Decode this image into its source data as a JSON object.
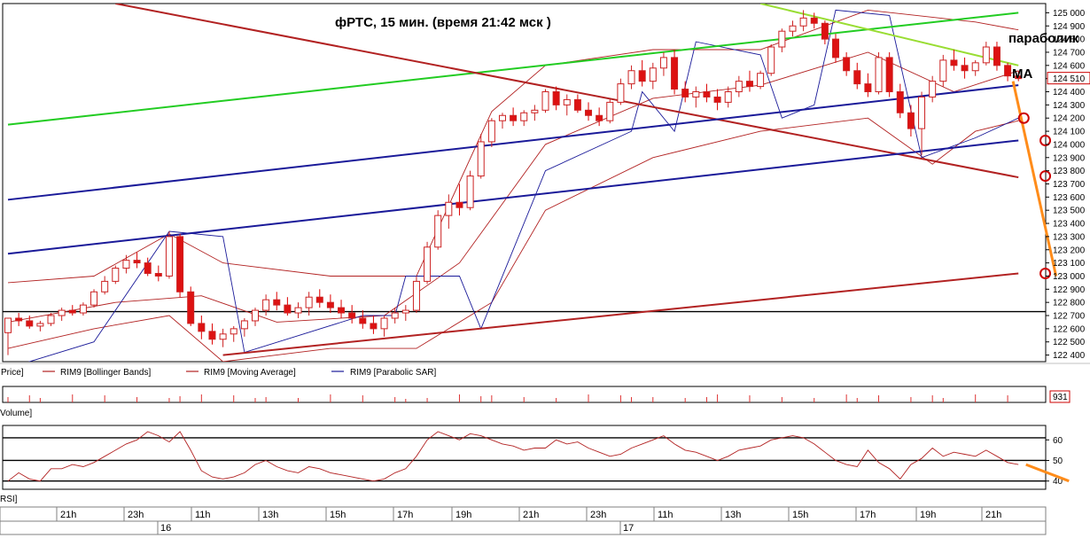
{
  "chart_data": {
    "type": "candlestick",
    "title": "фРТС,  15 мин.  (время 21:42 мск )",
    "price_axis": {
      "ticks": [
        122400,
        122500,
        122600,
        122700,
        122800,
        122900,
        123000,
        123100,
        123200,
        123300,
        123400,
        123500,
        123600,
        123700,
        123800,
        123900,
        124000,
        124100,
        124200,
        124300,
        124400,
        124500,
        124600,
        124700,
        124800,
        124900,
        125000
      ],
      "labels": [
        "122 400",
        "122 500",
        "122 600",
        "122 700",
        "122 800",
        "122 900",
        "123 000",
        "123 100",
        "123 200",
        "123 300",
        "123 400",
        "123 500",
        "123 600",
        "123 700",
        "123 800",
        "123 900",
        "124 000",
        "124 100",
        "124 200",
        "124 300",
        "124 400",
        "124 500",
        "124 600",
        "124 700",
        "124 800",
        "124 900",
        "125 000"
      ],
      "ylim": [
        122350,
        125070
      ],
      "last_price_label": "124 510",
      "horizontal_line": 122730
    },
    "time_axis": {
      "labels": [
        "21h",
        "23h",
        "11h",
        "13h",
        "15h",
        "17h",
        "19h",
        "21h",
        "23h",
        "11h",
        "13h",
        "15h",
        "17h",
        "19h",
        "21h"
      ],
      "day_labels": [
        "16",
        "17"
      ]
    },
    "legend": [
      "Price]",
      "RIM9 [Bollinger Bands]",
      "RIM9 [Moving Average]",
      "RIM9 [Parabolic SAR]"
    ],
    "annotations": {
      "parabolic": "параболик",
      "ma": "MA"
    },
    "candles": [
      [
        122570,
        122680,
        122400,
        122680
      ],
      [
        122680,
        122720,
        122620,
        122660
      ],
      [
        122660,
        122700,
        122600,
        122620
      ],
      [
        122620,
        122660,
        122580,
        122640
      ],
      [
        122640,
        122720,
        122620,
        122700
      ],
      [
        122700,
        122760,
        122660,
        122740
      ],
      [
        122740,
        122780,
        122700,
        122720
      ],
      [
        122720,
        122800,
        122700,
        122780
      ],
      [
        122780,
        122900,
        122760,
        122880
      ],
      [
        122880,
        123000,
        122860,
        122960
      ],
      [
        122960,
        123080,
        122940,
        123060
      ],
      [
        123060,
        123160,
        123020,
        123120
      ],
      [
        123120,
        123180,
        123060,
        123100
      ],
      [
        123100,
        123140,
        123000,
        123020
      ],
      [
        123020,
        123080,
        122960,
        123000
      ],
      [
        123000,
        123340,
        122980,
        123300
      ],
      [
        123300,
        123320,
        122840,
        122880
      ],
      [
        122880,
        122920,
        122620,
        122640
      ],
      [
        122640,
        122700,
        122520,
        122580
      ],
      [
        122580,
        122640,
        122480,
        122520
      ],
      [
        122520,
        122600,
        122460,
        122560
      ],
      [
        122560,
        122620,
        122500,
        122600
      ],
      [
        122600,
        122680,
        122540,
        122660
      ],
      [
        122660,
        122760,
        122620,
        122740
      ],
      [
        122740,
        122860,
        122700,
        122820
      ],
      [
        122820,
        122880,
        122740,
        122780
      ],
      [
        122780,
        122840,
        122700,
        122720
      ],
      [
        122720,
        122800,
        122680,
        122760
      ],
      [
        122760,
        122880,
        122700,
        122840
      ],
      [
        122840,
        122900,
        122760,
        122800
      ],
      [
        122800,
        122860,
        122720,
        122760
      ],
      [
        122760,
        122820,
        122680,
        122720
      ],
      [
        122720,
        122780,
        122640,
        122680
      ],
      [
        122680,
        122740,
        122600,
        122640
      ],
      [
        122640,
        122700,
        122560,
        122600
      ],
      [
        122600,
        122700,
        122540,
        122680
      ],
      [
        122680,
        122760,
        122640,
        122720
      ],
      [
        122720,
        122780,
        122660,
        122740
      ],
      [
        122740,
        123000,
        122720,
        122960
      ],
      [
        122960,
        123260,
        122940,
        123220
      ],
      [
        123220,
        123500,
        123200,
        123460
      ],
      [
        123460,
        123620,
        123360,
        123560
      ],
      [
        123560,
        123700,
        123460,
        123520
      ],
      [
        123520,
        123800,
        123500,
        123760
      ],
      [
        123760,
        124080,
        123740,
        124020
      ],
      [
        124020,
        124200,
        123980,
        124180
      ],
      [
        124180,
        124240,
        124120,
        124220
      ],
      [
        124220,
        124280,
        124140,
        124180
      ],
      [
        124180,
        124260,
        124140,
        124240
      ],
      [
        124240,
        124300,
        124180,
        124260
      ],
      [
        124260,
        124420,
        124240,
        124400
      ],
      [
        124400,
        124440,
        124260,
        124300
      ],
      [
        124300,
        124380,
        124220,
        124340
      ],
      [
        124340,
        124380,
        124240,
        124260
      ],
      [
        124260,
        124320,
        124180,
        124220
      ],
      [
        124220,
        124280,
        124140,
        124180
      ],
      [
        124180,
        124340,
        124160,
        124320
      ],
      [
        124320,
        124500,
        124300,
        124460
      ],
      [
        124460,
        124600,
        124420,
        124560
      ],
      [
        124560,
        124640,
        124440,
        124480
      ],
      [
        124480,
        124620,
        124420,
        124580
      ],
      [
        124580,
        124700,
        124520,
        124660
      ],
      [
        124660,
        124720,
        124380,
        124420
      ],
      [
        124420,
        124480,
        124320,
        124360
      ],
      [
        124360,
        124440,
        124280,
        124400
      ],
      [
        124400,
        124460,
        124320,
        124360
      ],
      [
        124360,
        124420,
        124260,
        124320
      ],
      [
        124320,
        124440,
        124280,
        124400
      ],
      [
        124400,
        124520,
        124360,
        124480
      ],
      [
        124480,
        124560,
        124400,
        124440
      ],
      [
        124440,
        124560,
        124420,
        124540
      ],
      [
        124540,
        124760,
        124520,
        124740
      ],
      [
        124740,
        124880,
        124700,
        124860
      ],
      [
        124860,
        124940,
        124820,
        124900
      ],
      [
        124900,
        125020,
        124860,
        124960
      ],
      [
        124960,
        125000,
        124880,
        124920
      ],
      [
        124920,
        124940,
        124760,
        124800
      ],
      [
        124800,
        124840,
        124620,
        124660
      ],
      [
        124660,
        124700,
        124520,
        124560
      ],
      [
        124560,
        124620,
        124420,
        124460
      ],
      [
        124460,
        124540,
        124360,
        124400
      ],
      [
        124400,
        124700,
        124380,
        124660
      ],
      [
        124660,
        124700,
        124360,
        124400
      ],
      [
        124400,
        124460,
        124200,
        124240
      ],
      [
        124240,
        124300,
        124060,
        124120
      ],
      [
        124120,
        124400,
        123920,
        124360
      ],
      [
        124360,
        124520,
        124320,
        124480
      ],
      [
        124480,
        124680,
        124440,
        124640
      ],
      [
        124640,
        124720,
        124560,
        124600
      ],
      [
        124600,
        124660,
        124500,
        124560
      ],
      [
        124560,
        124640,
        124520,
        124620
      ],
      [
        124620,
        124780,
        124600,
        124740
      ],
      [
        124740,
        124780,
        124560,
        124600
      ],
      [
        124600,
        124620,
        124480,
        124520
      ],
      [
        124520,
        124560,
        124480,
        124500
      ]
    ],
    "bollinger_upper": [
      [
        0,
        122950
      ],
      [
        8,
        123000
      ],
      [
        15,
        123320
      ],
      [
        20,
        123100
      ],
      [
        30,
        123000
      ],
      [
        38,
        123000
      ],
      [
        45,
        124250
      ],
      [
        50,
        124600
      ],
      [
        60,
        124720
      ],
      [
        70,
        124720
      ],
      [
        80,
        125020
      ],
      [
        90,
        124930
      ],
      [
        94,
        124870
      ]
    ],
    "bollinger_lower": [
      [
        0,
        122450
      ],
      [
        8,
        122600
      ],
      [
        15,
        122700
      ],
      [
        20,
        122350
      ],
      [
        30,
        122450
      ],
      [
        38,
        122450
      ],
      [
        45,
        122800
      ],
      [
        50,
        123500
      ],
      [
        60,
        123900
      ],
      [
        70,
        124100
      ],
      [
        80,
        124200
      ],
      [
        86,
        123850
      ],
      [
        90,
        124100
      ],
      [
        94,
        124180
      ]
    ],
    "moving_average": [
      [
        0,
        122650
      ],
      [
        10,
        122800
      ],
      [
        18,
        122850
      ],
      [
        25,
        122650
      ],
      [
        35,
        122700
      ],
      [
        42,
        123100
      ],
      [
        50,
        124000
      ],
      [
        60,
        124350
      ],
      [
        70,
        124450
      ],
      [
        80,
        124700
      ],
      [
        88,
        124400
      ],
      [
        94,
        124560
      ]
    ],
    "parabolic_sar": [
      [
        0,
        122300
      ],
      [
        8,
        122500
      ],
      [
        15,
        123340
      ],
      [
        20,
        123300
      ],
      [
        22,
        122420
      ],
      [
        33,
        122700
      ],
      [
        36,
        122700
      ],
      [
        37,
        123000
      ],
      [
        42,
        123000
      ],
      [
        44,
        122600
      ],
      [
        50,
        123800
      ],
      [
        58,
        124100
      ],
      [
        59,
        124400
      ],
      [
        62,
        124100
      ],
      [
        64,
        124780
      ],
      [
        70,
        124680
      ],
      [
        72,
        124200
      ],
      [
        75,
        124300
      ],
      [
        77,
        125020
      ],
      [
        82,
        124980
      ],
      [
        85,
        123900
      ],
      [
        90,
        124050
      ],
      [
        94,
        124200
      ]
    ],
    "trend_lines": [
      {
        "color": "#22cc22",
        "points": [
          [
            0,
            124150
          ],
          [
            94,
            125000
          ]
        ]
      },
      {
        "color": "#99dd33",
        "points": [
          [
            70,
            125070
          ],
          [
            94,
            124600
          ]
        ]
      },
      {
        "color": "#b22222",
        "points": [
          [
            10,
            125070
          ],
          [
            94,
            123750
          ]
        ]
      },
      {
        "color": "#b22222",
        "points": [
          [
            20,
            122400
          ],
          [
            94,
            123020
          ]
        ]
      },
      {
        "color": "#1a1a99",
        "points": [
          [
            0,
            123580
          ],
          [
            94,
            124450
          ]
        ]
      },
      {
        "color": "#1a1a99",
        "points": [
          [
            0,
            123170
          ],
          [
            94,
            124030
          ]
        ]
      }
    ],
    "forecast_line": {
      "color": "#ff8c1a",
      "points": [
        [
          93.5,
          124480
        ],
        [
          97.5,
          123000
        ]
      ]
    },
    "forecast_circles": [
      [
        94.5,
        124200
      ],
      [
        96.5,
        124030
      ],
      [
        96.5,
        123760
      ],
      [
        96.5,
        123020
      ]
    ],
    "volume": {
      "value_label": "931",
      "label": "Volume]"
    },
    "rsi": {
      "label": "RSI]",
      "ticks": [
        60,
        50,
        40
      ],
      "lines": [
        61,
        50,
        40
      ],
      "values": [
        40,
        44,
        41,
        40,
        46,
        46,
        48,
        47,
        49,
        52,
        55,
        58,
        60,
        64,
        62,
        59,
        64,
        55,
        45,
        42,
        41,
        42,
        44,
        48,
        50,
        47,
        45,
        44,
        47,
        46,
        44,
        43,
        42,
        41,
        40,
        41,
        44,
        46,
        52,
        60,
        64,
        62,
        60,
        63,
        62,
        60,
        58,
        57,
        55,
        56,
        56,
        60,
        58,
        59,
        56,
        54,
        52,
        53,
        56,
        58,
        60,
        62,
        58,
        55,
        54,
        52,
        50,
        52,
        55,
        56,
        57,
        60,
        61,
        62,
        61,
        58,
        54,
        50,
        48,
        47,
        55,
        49,
        46,
        41,
        48,
        51,
        56,
        52,
        54,
        53,
        52,
        55,
        52,
        49,
        48
      ],
      "forecast": [
        [
          94.7,
          48
        ],
        [
          98.7,
          40
        ]
      ]
    }
  }
}
